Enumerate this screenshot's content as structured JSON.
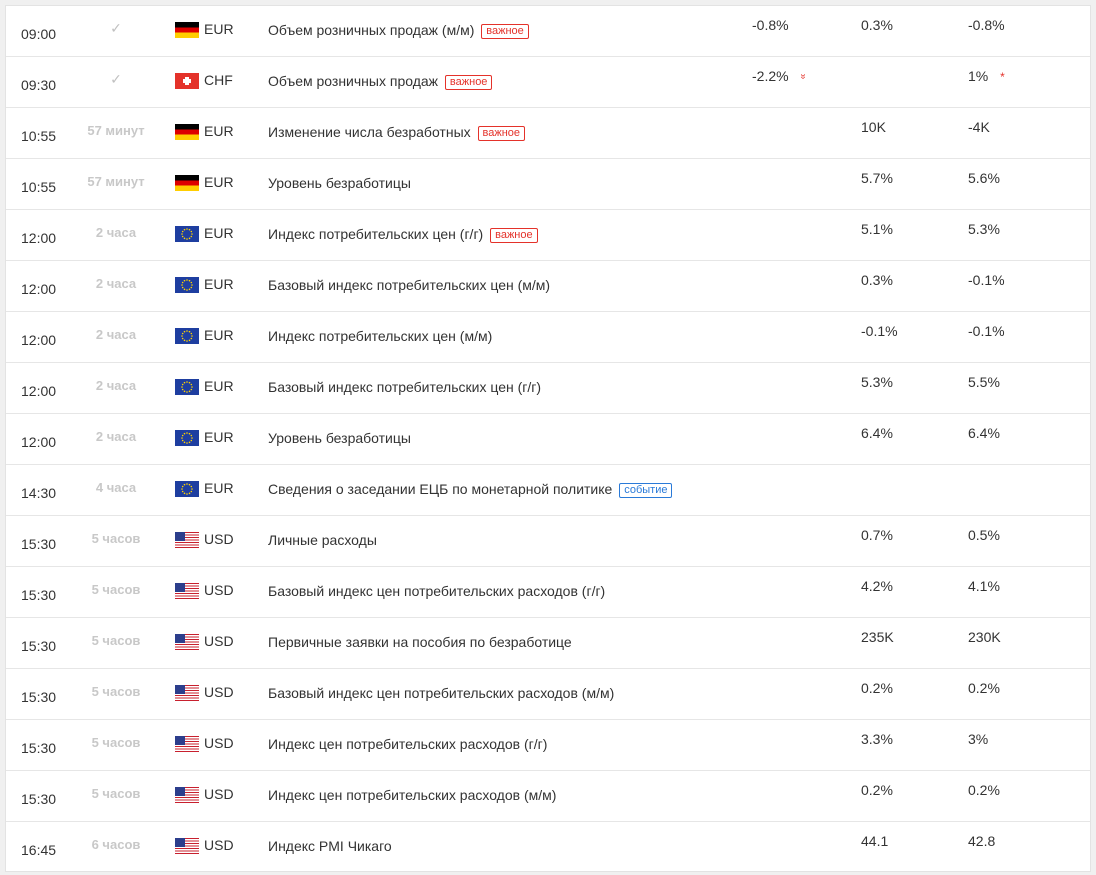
{
  "rows": [
    {
      "time": "09:00",
      "status": "✓",
      "status_type": "check",
      "flag": "de",
      "currency": "EUR",
      "event": "Объем розничных продаж (м/м)",
      "badge": "важное",
      "badge_type": "important",
      "actual": "-0.8%",
      "actual_marker": "",
      "forecast": "0.3%",
      "previous": "-0.8%",
      "previous_marker": ""
    },
    {
      "time": "09:30",
      "status": "✓",
      "status_type": "check",
      "flag": "ch",
      "currency": "CHF",
      "event": "Объем розничных продаж",
      "badge": "важное",
      "badge_type": "important",
      "actual": "-2.2%",
      "actual_marker": "»",
      "forecast": "",
      "previous": "1%",
      "previous_marker": "*"
    },
    {
      "time": "10:55",
      "status": "57 минут",
      "status_type": "countdown",
      "flag": "de",
      "currency": "EUR",
      "event": "Изменение числа безработных",
      "badge": "важное",
      "badge_type": "important",
      "actual": "",
      "actual_marker": "",
      "forecast": "10K",
      "previous": "-4K",
      "previous_marker": ""
    },
    {
      "time": "10:55",
      "status": "57 минут",
      "status_type": "countdown",
      "flag": "de",
      "currency": "EUR",
      "event": "Уровень безработицы",
      "badge": "",
      "badge_type": "",
      "actual": "",
      "actual_marker": "",
      "forecast": "5.7%",
      "previous": "5.6%",
      "previous_marker": ""
    },
    {
      "time": "12:00",
      "status": "2 часа",
      "status_type": "countdown",
      "flag": "eu",
      "currency": "EUR",
      "event": "Индекс потребительских цен (г/г)",
      "badge": "важное",
      "badge_type": "important",
      "actual": "",
      "actual_marker": "",
      "forecast": "5.1%",
      "previous": "5.3%",
      "previous_marker": ""
    },
    {
      "time": "12:00",
      "status": "2 часа",
      "status_type": "countdown",
      "flag": "eu",
      "currency": "EUR",
      "event": "Базовый индекс потребительских цен (м/м)",
      "badge": "",
      "badge_type": "",
      "actual": "",
      "actual_marker": "",
      "forecast": "0.3%",
      "previous": "-0.1%",
      "previous_marker": ""
    },
    {
      "time": "12:00",
      "status": "2 часа",
      "status_type": "countdown",
      "flag": "eu",
      "currency": "EUR",
      "event": "Индекс потребительских цен (м/м)",
      "badge": "",
      "badge_type": "",
      "actual": "",
      "actual_marker": "",
      "forecast": "-0.1%",
      "previous": "-0.1%",
      "previous_marker": ""
    },
    {
      "time": "12:00",
      "status": "2 часа",
      "status_type": "countdown",
      "flag": "eu",
      "currency": "EUR",
      "event": "Базовый индекс потребительских цен (г/г)",
      "badge": "",
      "badge_type": "",
      "actual": "",
      "actual_marker": "",
      "forecast": "5.3%",
      "previous": "5.5%",
      "previous_marker": ""
    },
    {
      "time": "12:00",
      "status": "2 часа",
      "status_type": "countdown",
      "flag": "eu",
      "currency": "EUR",
      "event": "Уровень безработицы",
      "badge": "",
      "badge_type": "",
      "actual": "",
      "actual_marker": "",
      "forecast": "6.4%",
      "previous": "6.4%",
      "previous_marker": ""
    },
    {
      "time": "14:30",
      "status": "4 часа",
      "status_type": "countdown",
      "flag": "eu",
      "currency": "EUR",
      "event": "Сведения о заседании ЕЦБ по монетарной политике",
      "badge": "событие",
      "badge_type": "event",
      "actual": "",
      "actual_marker": "",
      "forecast": "",
      "previous": "",
      "previous_marker": ""
    },
    {
      "time": "15:30",
      "status": "5 часов",
      "status_type": "countdown",
      "flag": "us",
      "currency": "USD",
      "event": "Личные расходы",
      "badge": "",
      "badge_type": "",
      "actual": "",
      "actual_marker": "",
      "forecast": "0.7%",
      "previous": "0.5%",
      "previous_marker": ""
    },
    {
      "time": "15:30",
      "status": "5 часов",
      "status_type": "countdown",
      "flag": "us",
      "currency": "USD",
      "event": "Базовый индекс цен потребительских расходов (г/г)",
      "badge": "",
      "badge_type": "",
      "actual": "",
      "actual_marker": "",
      "forecast": "4.2%",
      "previous": "4.1%",
      "previous_marker": ""
    },
    {
      "time": "15:30",
      "status": "5 часов",
      "status_type": "countdown",
      "flag": "us",
      "currency": "USD",
      "event": "Первичные заявки на пособия по безработице",
      "badge": "",
      "badge_type": "",
      "actual": "",
      "actual_marker": "",
      "forecast": "235K",
      "previous": "230K",
      "previous_marker": ""
    },
    {
      "time": "15:30",
      "status": "5 часов",
      "status_type": "countdown",
      "flag": "us",
      "currency": "USD",
      "event": "Базовый индекс цен потребительских расходов (м/м)",
      "badge": "",
      "badge_type": "",
      "actual": "",
      "actual_marker": "",
      "forecast": "0.2%",
      "previous": "0.2%",
      "previous_marker": ""
    },
    {
      "time": "15:30",
      "status": "5 часов",
      "status_type": "countdown",
      "flag": "us",
      "currency": "USD",
      "event": "Индекс цен потребительских расходов (г/г)",
      "badge": "",
      "badge_type": "",
      "actual": "",
      "actual_marker": "",
      "forecast": "3.3%",
      "previous": "3%",
      "previous_marker": ""
    },
    {
      "time": "15:30",
      "status": "5 часов",
      "status_type": "countdown",
      "flag": "us",
      "currency": "USD",
      "event": "Индекс цен потребительских расходов (м/м)",
      "badge": "",
      "badge_type": "",
      "actual": "",
      "actual_marker": "",
      "forecast": "0.2%",
      "previous": "0.2%",
      "previous_marker": ""
    },
    {
      "time": "16:45",
      "status": "6 часов",
      "status_type": "countdown",
      "flag": "us",
      "currency": "USD",
      "event": "Индекс PMI Чикаго",
      "badge": "",
      "badge_type": "",
      "actual": "",
      "actual_marker": "",
      "forecast": "44.1",
      "previous": "42.8",
      "previous_marker": ""
    }
  ],
  "colors": {
    "important": "#e4322a",
    "event": "#2a7ad8",
    "muted": "#c8c8c8"
  },
  "icons": {
    "check": "check-icon",
    "actual_down": "double-chevron-down-icon",
    "revised": "asterisk-icon"
  }
}
